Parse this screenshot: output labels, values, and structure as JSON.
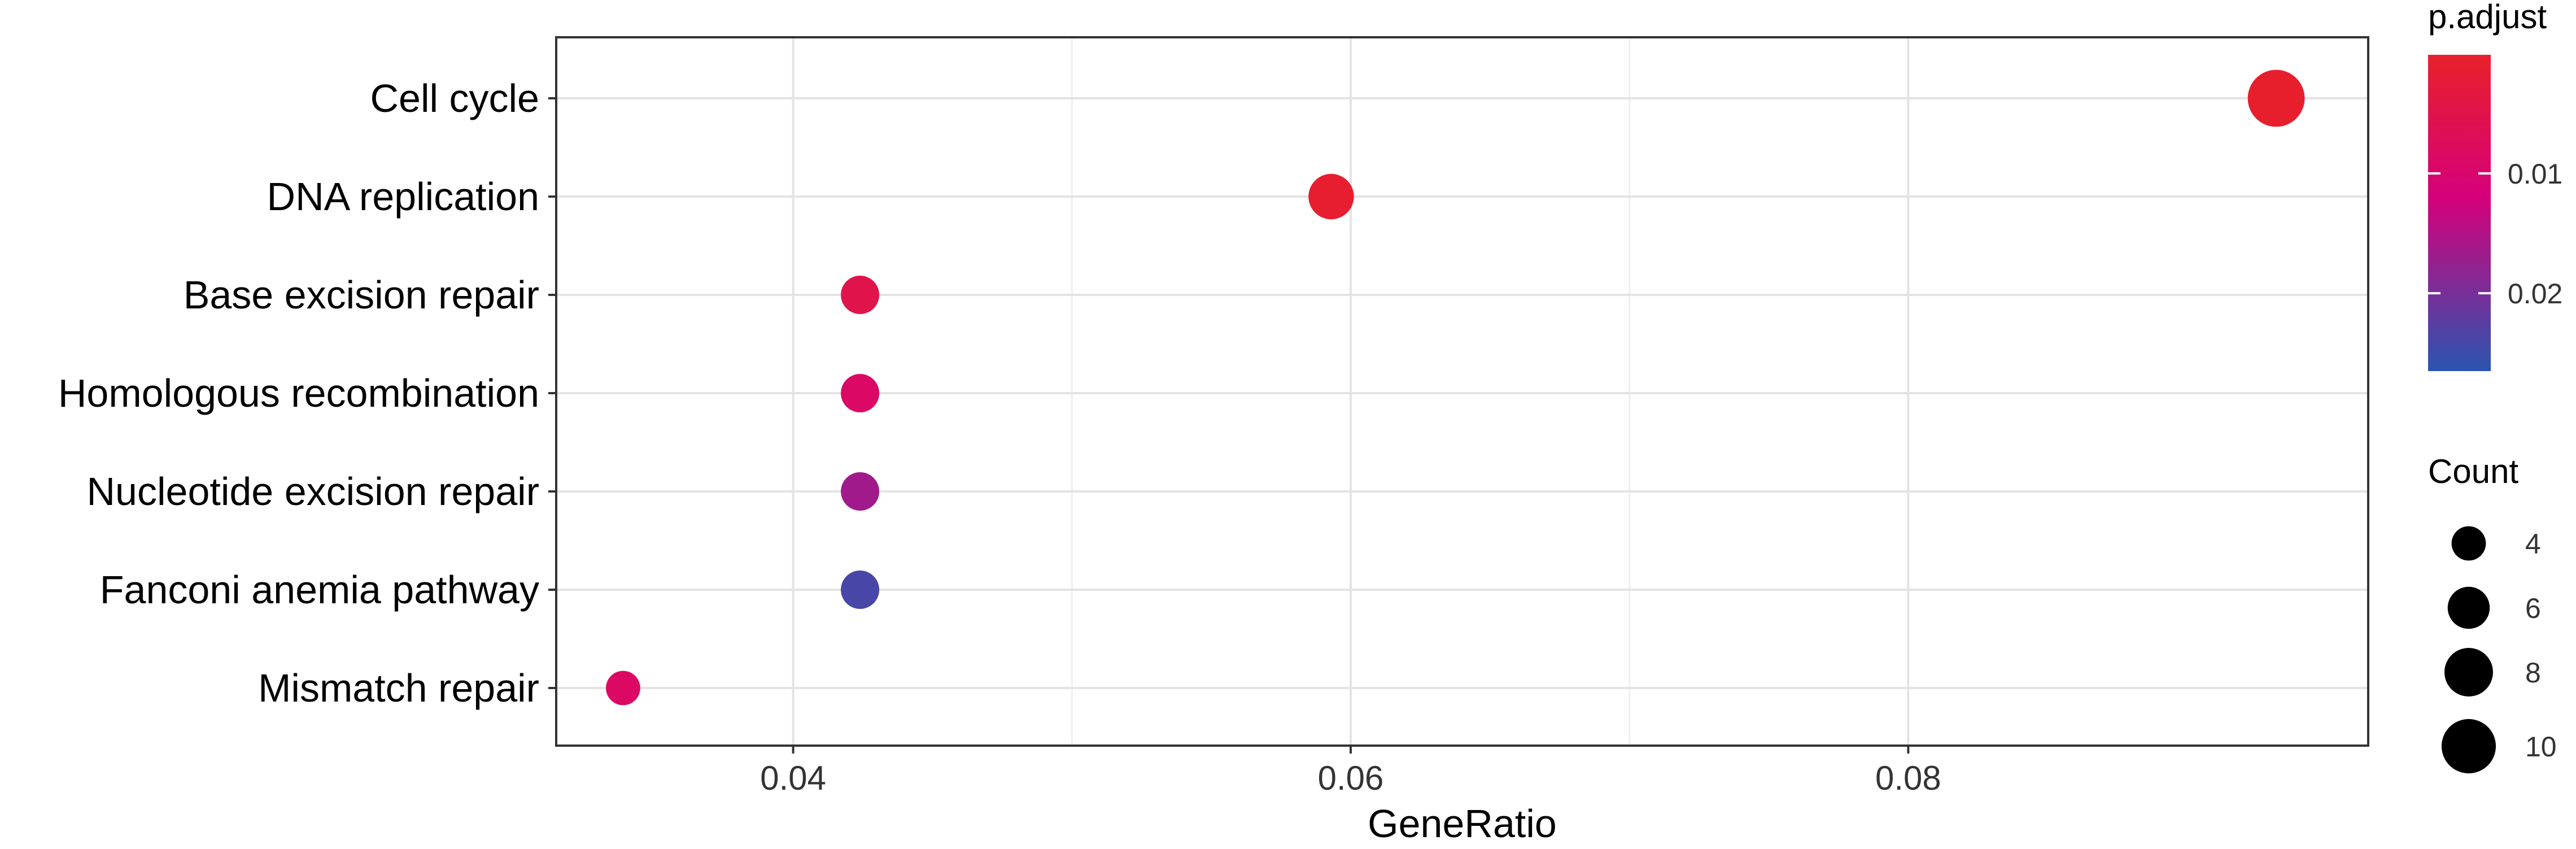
{
  "chart_data": {
    "type": "scatter",
    "xlabel": "GeneRatio",
    "ylabel": "",
    "xlim": [
      0.0315,
      0.0965
    ],
    "xticks": [
      0.04,
      0.06,
      0.08
    ],
    "xtick_labels": [
      "0.04",
      "0.06",
      "0.08"
    ],
    "grid": true,
    "legend_position": "right",
    "categories": [
      "Cell cycle",
      "DNA replication",
      "Base excision repair",
      "Homologous recombination",
      "Nucleotide excision repair",
      "Fanconi anemia pathway",
      "Mismatch repair"
    ],
    "points": [
      {
        "term": "Cell cycle",
        "gene_ratio": 0.0932,
        "count": 11,
        "p_adjust": 0.0005
      },
      {
        "term": "DNA replication",
        "gene_ratio": 0.0593,
        "count": 7,
        "p_adjust": 0.001
      },
      {
        "term": "Base excision repair",
        "gene_ratio": 0.0424,
        "count": 5,
        "p_adjust": 0.005
      },
      {
        "term": "Homologous recombination",
        "gene_ratio": 0.0424,
        "count": 5,
        "p_adjust": 0.009
      },
      {
        "term": "Nucleotide excision repair",
        "gene_ratio": 0.0424,
        "count": 5,
        "p_adjust": 0.0165
      },
      {
        "term": "Fanconi anemia pathway",
        "gene_ratio": 0.0424,
        "count": 5,
        "p_adjust": 0.024
      },
      {
        "term": "Mismatch repair",
        "gene_ratio": 0.0339,
        "count": 4,
        "p_adjust": 0.0085
      }
    ],
    "color_legend": {
      "title": "p.adjust",
      "range": [
        0.0001,
        0.0265
      ],
      "ticks": [
        0.01,
        0.02
      ],
      "tick_labels": [
        "0.01",
        "0.02"
      ],
      "low_color": "#e8202a",
      "mid_color": "#d6007a",
      "high_color": "#2a55b0"
    },
    "size_legend": {
      "title": "Count",
      "values": [
        4,
        6,
        8,
        10
      ],
      "labels": [
        "4",
        "6",
        "8",
        "10"
      ]
    }
  }
}
